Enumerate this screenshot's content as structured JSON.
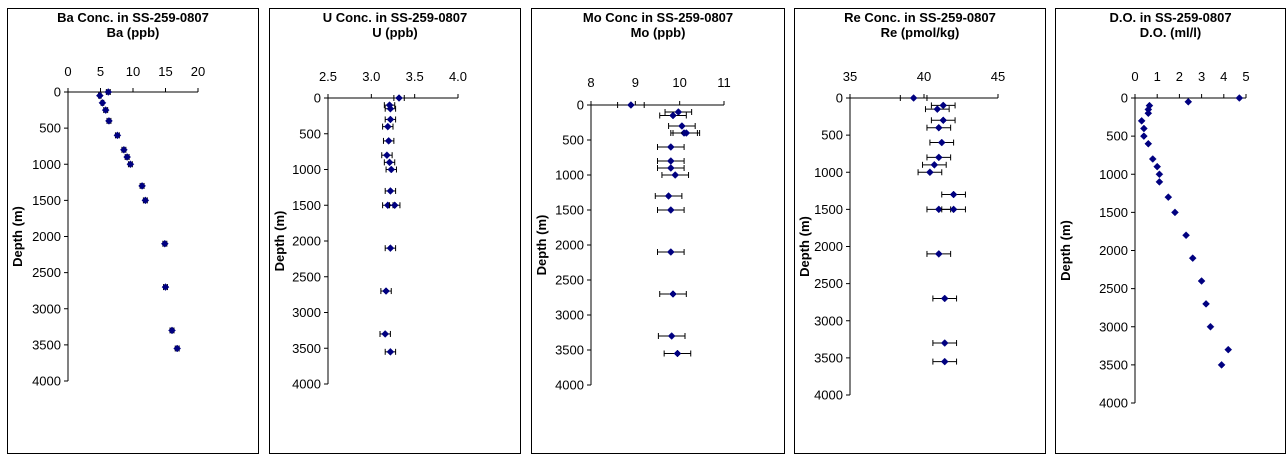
{
  "colors": {
    "marker": "#000080",
    "axis": "#000000",
    "border": "#000000"
  },
  "chart_data": [
    {
      "type": "scatter",
      "title": "Ba Conc. in SS-259-0807",
      "xlabel": "Ba (ppb)",
      "ylabel": "Depth (m)",
      "xlim": [
        0,
        20
      ],
      "xticks": [
        "0",
        "5",
        "10",
        "15",
        "20"
      ],
      "ylim": [
        0,
        4000
      ],
      "yticks": [
        "0",
        "500",
        "1000",
        "1500",
        "2000",
        "2500",
        "3000",
        "3500",
        "4000"
      ],
      "x_axis_position": "top",
      "points": [
        {
          "x": 6.2,
          "y": 0,
          "xerr": 0.3
        },
        {
          "x": 4.9,
          "y": 50,
          "xerr": 0.2
        },
        {
          "x": 5.3,
          "y": 150,
          "xerr": 0.2
        },
        {
          "x": 5.8,
          "y": 250,
          "xerr": 0.3
        },
        {
          "x": 6.3,
          "y": 400,
          "xerr": 0.3
        },
        {
          "x": 7.6,
          "y": 600,
          "xerr": 0.3
        },
        {
          "x": 8.6,
          "y": 800,
          "xerr": 0.3
        },
        {
          "x": 9.1,
          "y": 900,
          "xerr": 0.3
        },
        {
          "x": 9.6,
          "y": 1000,
          "xerr": 0.3
        },
        {
          "x": 11.4,
          "y": 1300,
          "xerr": 0.3
        },
        {
          "x": 11.9,
          "y": 1500,
          "xerr": 0.3
        },
        {
          "x": 14.9,
          "y": 2100,
          "xerr": 0.3
        },
        {
          "x": 15.0,
          "y": 2700,
          "xerr": 0.3
        },
        {
          "x": 16.0,
          "y": 3300,
          "xerr": 0.3
        },
        {
          "x": 16.8,
          "y": 3550,
          "xerr": 0.3
        }
      ]
    },
    {
      "type": "scatter",
      "title": "U Conc. in SS-259-0807",
      "xlabel": "U (ppb)",
      "ylabel": "Depth (m)",
      "xlim": [
        2.5,
        4.0
      ],
      "xticks": [
        "2.5",
        "3.0",
        "3.5",
        "4.0"
      ],
      "ylim": [
        0,
        4000
      ],
      "yticks": [
        "0",
        "500",
        "1000",
        "1500",
        "2000",
        "2500",
        "3000",
        "3500",
        "4000"
      ],
      "x_axis_position": "top",
      "points": [
        {
          "x": 3.32,
          "y": 0,
          "xerr": 0.06
        },
        {
          "x": 3.21,
          "y": 100,
          "xerr": 0.06
        },
        {
          "x": 3.22,
          "y": 150,
          "xerr": 0.06
        },
        {
          "x": 3.22,
          "y": 300,
          "xerr": 0.06
        },
        {
          "x": 3.19,
          "y": 400,
          "xerr": 0.06
        },
        {
          "x": 3.2,
          "y": 600,
          "xerr": 0.06
        },
        {
          "x": 3.18,
          "y": 800,
          "xerr": 0.06
        },
        {
          "x": 3.21,
          "y": 900,
          "xerr": 0.06
        },
        {
          "x": 3.23,
          "y": 1000,
          "xerr": 0.06
        },
        {
          "x": 3.22,
          "y": 1300,
          "xerr": 0.06
        },
        {
          "x": 3.19,
          "y": 1500,
          "xerr": 0.06
        },
        {
          "x": 3.27,
          "y": 1500,
          "xerr": 0.06
        },
        {
          "x": 3.22,
          "y": 2100,
          "xerr": 0.06
        },
        {
          "x": 3.17,
          "y": 2700,
          "xerr": 0.06
        },
        {
          "x": 3.16,
          "y": 3300,
          "xerr": 0.06
        },
        {
          "x": 3.22,
          "y": 3550,
          "xerr": 0.06
        }
      ]
    },
    {
      "type": "scatter",
      "title": "Mo Conc in SS-259-0807",
      "xlabel": "Mo (ppb)",
      "ylabel": "Depth (m)",
      "xlim": [
        8,
        11
      ],
      "xticks": [
        "8",
        "9",
        "10",
        "11"
      ],
      "ylim": [
        0,
        4000
      ],
      "yticks": [
        "0",
        "500",
        "1000",
        "1500",
        "2000",
        "2500",
        "3000",
        "3500",
        "4000"
      ],
      "x_axis_position": "top",
      "points": [
        {
          "x": 8.9,
          "y": 0,
          "xerr": 0.3
        },
        {
          "x": 9.97,
          "y": 100,
          "xerr": 0.3
        },
        {
          "x": 9.85,
          "y": 150,
          "xerr": 0.3
        },
        {
          "x": 10.05,
          "y": 300,
          "xerr": 0.3
        },
        {
          "x": 10.1,
          "y": 400,
          "xerr": 0.3
        },
        {
          "x": 10.15,
          "y": 400,
          "xerr": 0.3
        },
        {
          "x": 9.8,
          "y": 600,
          "xerr": 0.3
        },
        {
          "x": 9.8,
          "y": 800,
          "xerr": 0.3
        },
        {
          "x": 9.8,
          "y": 900,
          "xerr": 0.3
        },
        {
          "x": 9.9,
          "y": 1000,
          "xerr": 0.3
        },
        {
          "x": 9.75,
          "y": 1300,
          "xerr": 0.3
        },
        {
          "x": 9.8,
          "y": 1500,
          "xerr": 0.3
        },
        {
          "x": 9.8,
          "y": 2100,
          "xerr": 0.3
        },
        {
          "x": 9.85,
          "y": 2700,
          "xerr": 0.3
        },
        {
          "x": 9.82,
          "y": 3300,
          "xerr": 0.3
        },
        {
          "x": 9.95,
          "y": 3550,
          "xerr": 0.3
        }
      ]
    },
    {
      "type": "scatter",
      "title": "Re Conc. in SS-259-0807",
      "xlabel": "Re (pmol/kg)",
      "ylabel": "Depth (m)",
      "xlim": [
        35,
        45
      ],
      "xticks": [
        "35",
        "40",
        "45"
      ],
      "ylim": [
        0,
        4000
      ],
      "yticks": [
        "0",
        "500",
        "1000",
        "1500",
        "2000",
        "2500",
        "3000",
        "3500",
        "4000"
      ],
      "x_axis_position": "top",
      "points": [
        {
          "x": 39.3,
          "y": 0,
          "xerr": 0.9
        },
        {
          "x": 41.3,
          "y": 100,
          "xerr": 0.8
        },
        {
          "x": 40.9,
          "y": 150,
          "xerr": 0.8
        },
        {
          "x": 41.3,
          "y": 300,
          "xerr": 0.8
        },
        {
          "x": 41.0,
          "y": 400,
          "xerr": 0.8
        },
        {
          "x": 41.2,
          "y": 600,
          "xerr": 0.8
        },
        {
          "x": 41.0,
          "y": 800,
          "xerr": 0.8
        },
        {
          "x": 40.7,
          "y": 900,
          "xerr": 0.8
        },
        {
          "x": 40.4,
          "y": 1000,
          "xerr": 0.8
        },
        {
          "x": 42.0,
          "y": 1300,
          "xerr": 0.8
        },
        {
          "x": 41.0,
          "y": 1500,
          "xerr": 0.8
        },
        {
          "x": 42.0,
          "y": 1500,
          "xerr": 0.8
        },
        {
          "x": 41.0,
          "y": 2100,
          "xerr": 0.8
        },
        {
          "x": 41.4,
          "y": 2700,
          "xerr": 0.8
        },
        {
          "x": 41.4,
          "y": 3300,
          "xerr": 0.8
        },
        {
          "x": 41.4,
          "y": 3550,
          "xerr": 0.8
        }
      ]
    },
    {
      "type": "scatter",
      "title": "D.O. in SS-259-0807",
      "xlabel": "D.O. (ml/l)",
      "ylabel": "Depth (m)",
      "xlim": [
        0,
        5
      ],
      "xticks": [
        "0",
        "1",
        "2",
        "3",
        "4",
        "5"
      ],
      "ylim": [
        0,
        4000
      ],
      "yticks": [
        "0",
        "500",
        "1000",
        "1500",
        "2000",
        "2500",
        "3000",
        "3500",
        "4000"
      ],
      "x_axis_position": "top",
      "points": [
        {
          "x": 4.7,
          "y": 0
        },
        {
          "x": 2.4,
          "y": 50
        },
        {
          "x": 0.65,
          "y": 100
        },
        {
          "x": 0.6,
          "y": 150
        },
        {
          "x": 0.6,
          "y": 200
        },
        {
          "x": 0.3,
          "y": 300
        },
        {
          "x": 0.4,
          "y": 400
        },
        {
          "x": 0.4,
          "y": 500
        },
        {
          "x": 0.6,
          "y": 600
        },
        {
          "x": 0.8,
          "y": 800
        },
        {
          "x": 1.0,
          "y": 900
        },
        {
          "x": 1.1,
          "y": 1000
        },
        {
          "x": 1.1,
          "y": 1100
        },
        {
          "x": 1.5,
          "y": 1300
        },
        {
          "x": 1.8,
          "y": 1500
        },
        {
          "x": 2.3,
          "y": 1800
        },
        {
          "x": 2.6,
          "y": 2100
        },
        {
          "x": 3.0,
          "y": 2400
        },
        {
          "x": 3.2,
          "y": 2700
        },
        {
          "x": 3.4,
          "y": 3000
        },
        {
          "x": 4.2,
          "y": 3300
        },
        {
          "x": 3.9,
          "y": 3500
        }
      ]
    }
  ]
}
